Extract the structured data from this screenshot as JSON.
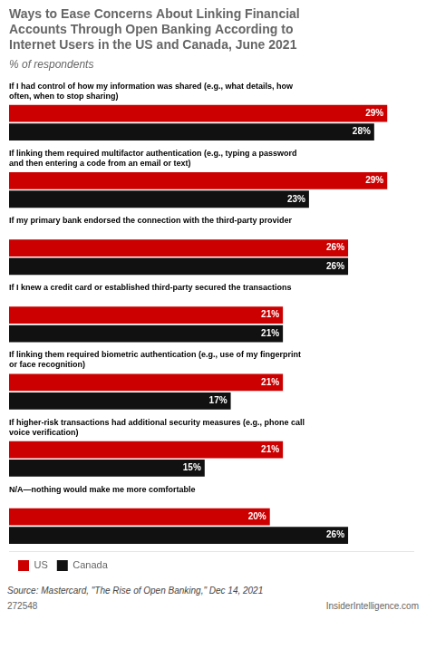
{
  "chart_data": {
    "type": "bar",
    "orientation": "horizontal",
    "title": "Ways to Ease Concerns About Linking Financial\nAccounts Through Open Banking According to\nInternet Users in the US and Canada, June 2021",
    "subtitle": "% of respondents",
    "categories": [
      "If I had control of how my information was shared (e.g., what details, how\noften, when to stop sharing)",
      "If linking them required multifactor authentication (e.g., typing a password\nand then entering a code from an email or text)",
      "If my primary bank endorsed the connection with the third-party provider",
      "If I knew a credit card or established third-party secured the transactions",
      "If linking them required biometric authentication (e.g., use of my fingerprint\nor face recognition)",
      "If higher-risk transactions had additional security measures (e.g., phone call\nvoice verification)",
      "N/A—nothing would make me more comfortable"
    ],
    "series": [
      {
        "name": "US",
        "color": "#cc0000",
        "values": [
          29,
          29,
          26,
          21,
          21,
          21,
          20
        ],
        "value_labels": [
          "29%",
          "29%",
          "26%",
          "21%",
          "21%",
          "21%",
          "20%"
        ]
      },
      {
        "name": "Canada",
        "color": "#111111",
        "values": [
          28,
          23,
          26,
          21,
          17,
          15,
          26
        ],
        "value_labels": [
          "28%",
          "23%",
          "26%",
          "21%",
          "17%",
          "15%",
          "26%"
        ]
      }
    ],
    "xlim": [
      0,
      31
    ],
    "grid": false,
    "legend": "lower left",
    "data_labels": true,
    "tick_labels": "y",
    "annotations": [
      "Source: Mastercard, \"The Rise of Open Banking,\" Dec 14, 2021",
      "272548",
      "InsiderIntelligence.com"
    ]
  }
}
